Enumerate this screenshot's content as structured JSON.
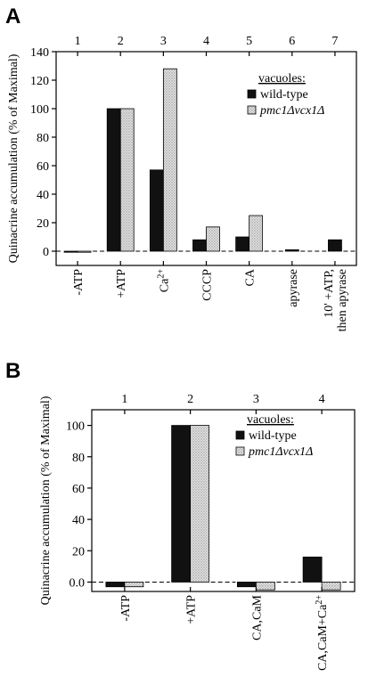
{
  "chart_data": [
    {
      "panel": "A",
      "type": "bar",
      "title": "",
      "xlabel": "",
      "ylabel": "Quinacrine accumulation (% of Maximal)",
      "ylim": [
        -10,
        140
      ],
      "yticks": [
        "140",
        "120",
        "100",
        "80",
        "60",
        "40",
        "20",
        "0"
      ],
      "ytick_values": [
        140,
        120,
        100,
        80,
        60,
        40,
        20,
        0
      ],
      "column_numbers": [
        "1",
        "2",
        "3",
        "4",
        "5",
        "6",
        "7"
      ],
      "categories": [
        "-ATP",
        "+ATP",
        "Ca2+",
        "CCCP",
        "CA",
        "apyrase",
        "10' +ATP, then apyrase"
      ],
      "legend_title": "vacuoles:",
      "legend_position": "right",
      "series": [
        {
          "name": "wild-type",
          "color": "#111111",
          "values": [
            0,
            100,
            57,
            8,
            10,
            1,
            8
          ]
        },
        {
          "name": "pmc1Δvcx1Δ",
          "color": "#c8c8c8",
          "values": [
            0,
            100,
            128,
            17,
            25,
            null,
            null
          ]
        }
      ],
      "baseline_dashed": true
    },
    {
      "panel": "B",
      "type": "bar",
      "title": "",
      "xlabel": "",
      "ylabel": "Quinacrine accumulation (% of Maximal)",
      "ylim": [
        -6,
        110
      ],
      "yticks": [
        "100",
        "80",
        "60",
        "40",
        "20",
        "0.0"
      ],
      "ytick_values": [
        100,
        80,
        60,
        40,
        20,
        0
      ],
      "column_numbers": [
        "1",
        "2",
        "3",
        "4"
      ],
      "categories": [
        "-ATP",
        "+ATP",
        "CA,CaM",
        "CA,CaM+Ca2+"
      ],
      "legend_title": "vacuoles:",
      "legend_position": "top-right",
      "series": [
        {
          "name": "wild-type",
          "color": "#111111",
          "values": [
            -3,
            100,
            -3,
            16
          ]
        },
        {
          "name": "pmc1Δvcx1Δ",
          "color": "#c8c8c8",
          "values": [
            -3,
            100,
            -5,
            -5
          ]
        }
      ],
      "baseline_dashed": true
    }
  ]
}
